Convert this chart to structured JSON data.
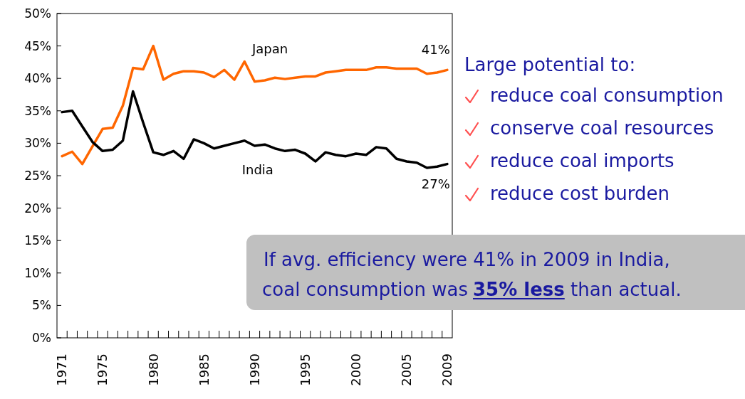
{
  "chart_data": {
    "type": "line",
    "categories": [
      "1971",
      null,
      null,
      null,
      "1975",
      null,
      null,
      null,
      null,
      "1980",
      null,
      null,
      null,
      null,
      "1985",
      null,
      null,
      null,
      null,
      "1990",
      null,
      null,
      null,
      null,
      "1995",
      null,
      null,
      null,
      null,
      "2000",
      null,
      null,
      null,
      null,
      "2005",
      null,
      null,
      null,
      "2009"
    ],
    "series": [
      {
        "name": "Japan",
        "color": "#ff6600",
        "values": [
          28,
          28.7,
          26.8,
          29.5,
          32.2,
          32.4,
          35.8,
          41.6,
          41.4,
          45,
          39.8,
          40.7,
          41.1,
          41.1,
          40.9,
          40.2,
          41.3,
          39.8,
          42.6,
          39.5,
          39.7,
          40.1,
          39.9,
          40.1,
          40.3,
          40.3,
          40.9,
          41.1,
          41.3,
          41.3,
          41.3,
          41.7,
          41.7,
          41.5,
          41.5,
          41.5,
          40.7,
          40.9,
          41.3
        ]
      },
      {
        "name": "India",
        "color": "#000000",
        "values": [
          34.8,
          35,
          32.6,
          30.2,
          28.8,
          29,
          30.4,
          38,
          33.2,
          28.6,
          28.2,
          28.8,
          27.6,
          30.6,
          30,
          29.2,
          29.6,
          30,
          30.4,
          29.6,
          29.8,
          29.2,
          28.8,
          29,
          28.4,
          27.2,
          28.6,
          28.2,
          28,
          28.4,
          28.2,
          29.4,
          29.2,
          27.6,
          27.2,
          27,
          26.2,
          26.4,
          26.8
        ]
      }
    ],
    "ylim": [
      0,
      50
    ],
    "yticks": [
      {
        "value": 0,
        "label": "0%"
      },
      {
        "value": 5,
        "label": "5%"
      },
      {
        "value": 10,
        "label": "10%"
      },
      {
        "value": 15,
        "label": "15%"
      },
      {
        "value": 20,
        "label": "20%"
      },
      {
        "value": 25,
        "label": "25%"
      },
      {
        "value": 30,
        "label": "30%"
      },
      {
        "value": 35,
        "label": "35%"
      },
      {
        "value": 40,
        "label": "40%"
      },
      {
        "value": 45,
        "label": "45%"
      },
      {
        "value": 50,
        "label": "50%"
      }
    ],
    "grid": false,
    "marker": "none",
    "line_style": "solid",
    "annotations": [
      {
        "text": "41%",
        "x": "2009",
        "y": 41.3
      },
      {
        "text": "27%",
        "x": "2009",
        "y": 26.8
      },
      "Large potential to:",
      "reduce coal consumption",
      "conserve coal resources",
      "reduce coal imports",
      "reduce cost burden",
      "If avg. efficiency were 41% in 2009 in India,",
      "coal consumption was",
      "35% less",
      "than actual."
    ]
  }
}
